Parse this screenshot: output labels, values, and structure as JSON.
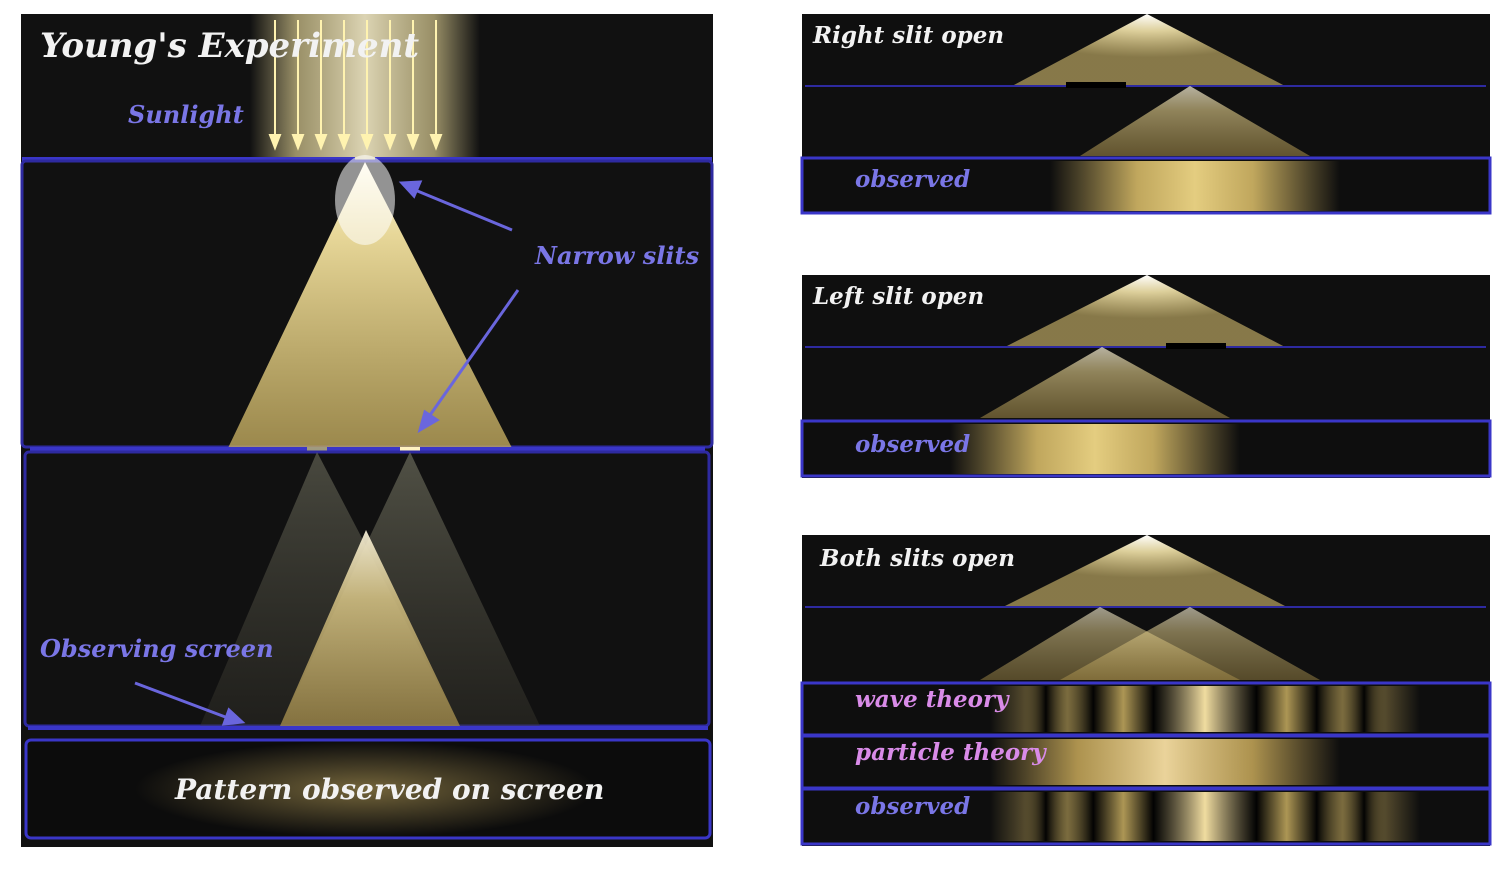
{
  "main_panel": {
    "title": "Young's Experiment",
    "sunlight_label": "Sunlight",
    "slits_label": "Narrow slits",
    "screen_label": "Observing screen",
    "pattern_label": "Pattern observed on screen"
  },
  "panels": [
    {
      "title": "Right slit open",
      "rows": [
        {
          "label": "observed"
        }
      ]
    },
    {
      "title": "Left slit open",
      "rows": [
        {
          "label": "observed"
        }
      ]
    },
    {
      "title": "Both slits open",
      "rows": [
        {
          "label": "wave theory"
        },
        {
          "label": "particle theory"
        },
        {
          "label": "observed"
        }
      ]
    }
  ],
  "colors": {
    "background": "#111111",
    "frame_blue": "#3a36c8",
    "light_yellow": "#f3e3a0",
    "label_blue": "#7a76e6",
    "label_pink": "#d98be8"
  }
}
